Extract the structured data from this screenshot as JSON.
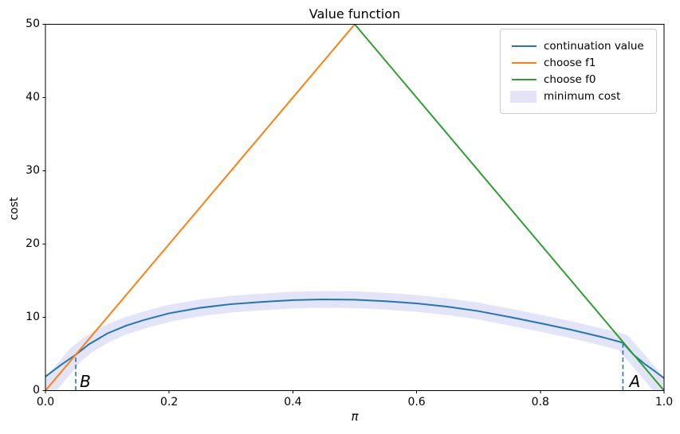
{
  "figure": {
    "title": "Value function",
    "background": "#ffffff"
  },
  "chart_data": {
    "type": "line",
    "title": "Value function",
    "xlabel": "π",
    "ylabel": "cost",
    "xlim": [
      0,
      1
    ],
    "ylim": [
      0,
      50
    ],
    "grid": false,
    "legend_position": "upper right",
    "xticks": {
      "values": [
        0,
        0.2,
        0.4,
        0.6,
        0.8,
        1.0
      ],
      "labels": [
        "0.0",
        "0.2",
        "0.4",
        "0.6",
        "0.8",
        "1.0"
      ]
    },
    "yticks": {
      "values": [
        0,
        10,
        20,
        30,
        40,
        50
      ],
      "labels": [
        "0",
        "10",
        "20",
        "30",
        "40",
        "50"
      ]
    },
    "annotation_line_color": "#1f77b4",
    "series": [
      {
        "name": "continuation value",
        "color": "#1f77b4",
        "width": 2,
        "style": "line",
        "points": [
          [
            0,
            1.9
          ],
          [
            0.01,
            2.55
          ],
          [
            0.025,
            3.5
          ],
          [
            0.049,
            4.9
          ],
          [
            0.07,
            6.3
          ],
          [
            0.1,
            7.8
          ],
          [
            0.13,
            8.85
          ],
          [
            0.16,
            9.65
          ],
          [
            0.2,
            10.55
          ],
          [
            0.25,
            11.3
          ],
          [
            0.3,
            11.8
          ],
          [
            0.35,
            12.1
          ],
          [
            0.4,
            12.35
          ],
          [
            0.45,
            12.45
          ],
          [
            0.5,
            12.4
          ],
          [
            0.55,
            12.2
          ],
          [
            0.6,
            11.9
          ],
          [
            0.65,
            11.45
          ],
          [
            0.7,
            10.85
          ],
          [
            0.75,
            10.05
          ],
          [
            0.8,
            9.2
          ],
          [
            0.85,
            8.3
          ],
          [
            0.9,
            7.3
          ],
          [
            0.933,
            6.55
          ],
          [
            0.95,
            4.95
          ],
          [
            0.97,
            3.55
          ],
          [
            0.985,
            2.65
          ],
          [
            1,
            1.7
          ]
        ]
      },
      {
        "name": "choose f1",
        "color": "#ff7f0e",
        "width": 2,
        "style": "line",
        "points": [
          [
            0,
            0
          ],
          [
            0.5,
            50
          ]
        ]
      },
      {
        "name": "choose f0",
        "color": "#2ca02c",
        "width": 2,
        "style": "line",
        "points": [
          [
            0.5,
            50
          ],
          [
            1,
            0
          ]
        ]
      },
      {
        "name": "minimum cost",
        "color": "#e4e4f9",
        "width": 21,
        "style": "band",
        "points": [
          [
            0,
            0
          ],
          [
            0.024,
            2.4
          ],
          [
            0.049,
            4.9
          ],
          [
            0.07,
            6.3
          ],
          [
            0.1,
            7.8
          ],
          [
            0.13,
            8.85
          ],
          [
            0.16,
            9.65
          ],
          [
            0.2,
            10.55
          ],
          [
            0.25,
            11.3
          ],
          [
            0.3,
            11.8
          ],
          [
            0.35,
            12.1
          ],
          [
            0.4,
            12.35
          ],
          [
            0.45,
            12.45
          ],
          [
            0.5,
            12.4
          ],
          [
            0.55,
            12.2
          ],
          [
            0.6,
            11.9
          ],
          [
            0.65,
            11.45
          ],
          [
            0.7,
            10.85
          ],
          [
            0.75,
            10.05
          ],
          [
            0.8,
            9.2
          ],
          [
            0.85,
            8.3
          ],
          [
            0.9,
            7.3
          ],
          [
            0.933,
            6.6
          ],
          [
            0.96,
            4.0
          ],
          [
            0.98,
            2.0
          ],
          [
            1,
            0
          ]
        ]
      }
    ],
    "annotations": [
      {
        "label": "B",
        "line_x": 0.049,
        "line_top": 4.9,
        "text_x": 0.0555,
        "text_y": 2.45
      },
      {
        "label": "A",
        "line_x": 0.9335,
        "line_top": 6.55,
        "text_x": 0.944,
        "text_y": 2.45
      }
    ]
  }
}
